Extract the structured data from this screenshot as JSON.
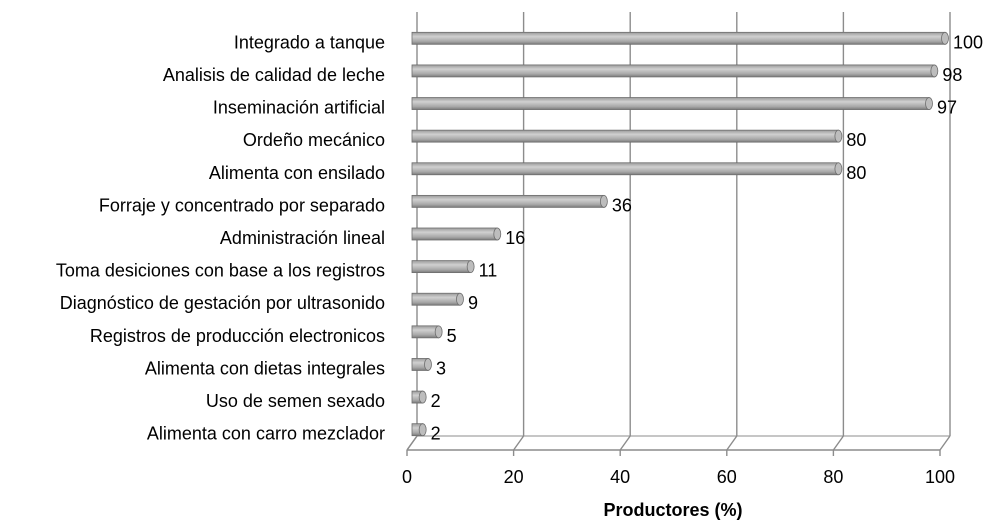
{
  "chart_data": {
    "type": "bar",
    "orientation": "horizontal",
    "categories": [
      "Integrado a tanque",
      "Analisis de calidad de leche",
      "Inseminación artificial",
      "Ordeño mecánico",
      "Alimenta con ensilado",
      "Forraje y concentrado por separado",
      "Administración lineal",
      "Toma desiciones con base a los registros",
      "Diagnóstico de gestación por ultrasonido",
      "Registros de producción electronicos",
      "Alimenta con dietas integrales",
      "Uso de semen sexado",
      "Alimenta con carro mezclador"
    ],
    "values": [
      100,
      98,
      97,
      80,
      80,
      36,
      16,
      11,
      9,
      5,
      3,
      2,
      2
    ],
    "value_labels": [
      "100",
      "98",
      "97",
      "80",
      "80",
      "36",
      "16",
      "11",
      "9",
      "5",
      "3",
      "2",
      "2"
    ],
    "xlabel": "Productores (%)",
    "xlim": [
      0,
      100
    ],
    "xticks": [
      "0",
      "20",
      "40",
      "60",
      "80",
      "100"
    ],
    "grid": "vertical",
    "legend": "none",
    "colors": {
      "bar": "#b3b3b3",
      "bar_dark": "#6e6e6e",
      "grid": "#8c8c8c"
    }
  }
}
